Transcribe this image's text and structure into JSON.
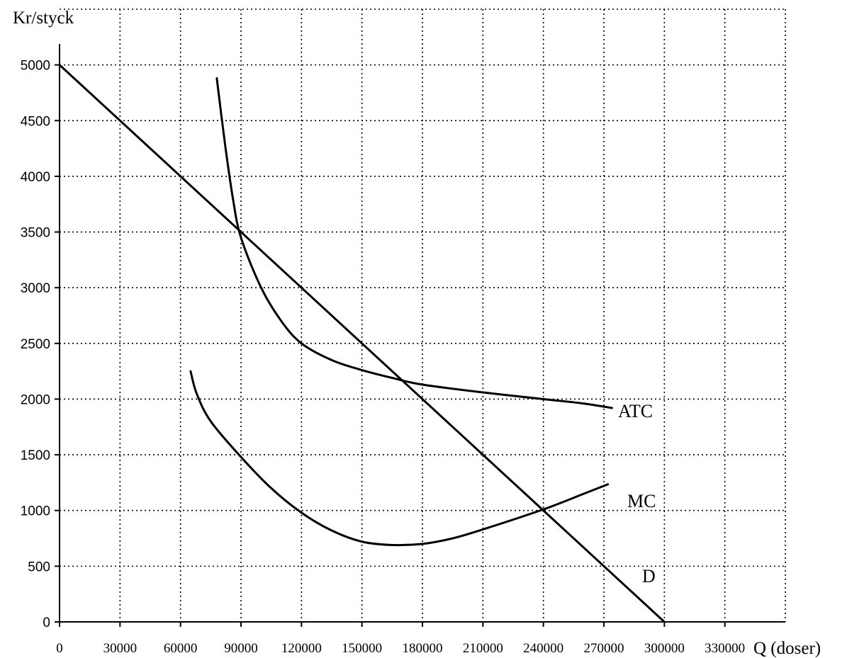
{
  "chart_data": {
    "type": "line",
    "ylabel": "Kr/styck",
    "xlabel": "Q (doser)",
    "xlim": [
      0,
      360000
    ],
    "ylim": [
      0,
      5500
    ],
    "x_ticks": [
      0,
      30000,
      60000,
      90000,
      120000,
      150000,
      180000,
      210000,
      240000,
      270000,
      300000,
      330000
    ],
    "y_ticks": [
      0,
      500,
      1000,
      1500,
      2000,
      2500,
      3000,
      3500,
      4000,
      4500,
      5000
    ],
    "grid": true,
    "series": [
      {
        "name": "D",
        "x": [
          0,
          60000,
          120000,
          180000,
          240000,
          255000,
          300000
        ],
        "y": [
          5000,
          4000,
          3000,
          2000,
          1000,
          750,
          0
        ]
      },
      {
        "name": "ATC",
        "x": [
          78000,
          82000,
          86000,
          90000,
          100000,
          110000,
          120000,
          135000,
          150000,
          165000,
          180000,
          210000,
          240000,
          260000,
          274000
        ],
        "y": [
          4880,
          4300,
          3800,
          3450,
          3000,
          2700,
          2500,
          2350,
          2260,
          2190,
          2130,
          2060,
          2000,
          1960,
          1920
        ]
      },
      {
        "name": "MC",
        "x": [
          65000,
          68000,
          75000,
          90000,
          105000,
          120000,
          135000,
          150000,
          165000,
          180000,
          195000,
          210000,
          240000,
          260000,
          272000
        ],
        "y": [
          2250,
          2050,
          1800,
          1480,
          1200,
          980,
          820,
          720,
          690,
          700,
          750,
          830,
          1010,
          1150,
          1235
        ]
      }
    ]
  }
}
